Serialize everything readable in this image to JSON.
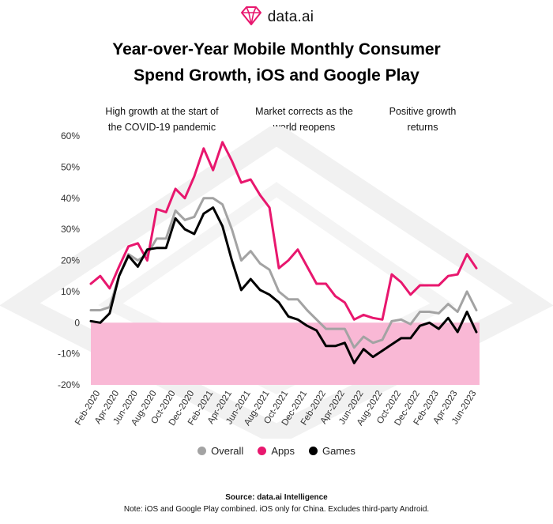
{
  "brand": {
    "name": "data.ai",
    "logo_icon": "gem-logo-icon"
  },
  "title": {
    "line1": "Year-over-Year Mobile Monthly Consumer",
    "line2": "Spend Growth, iOS and Google Play"
  },
  "annotations": [
    {
      "line1": "High growth at the start of",
      "line2": "the  COVID-19 pandemic"
    },
    {
      "line1": "Market corrects as the",
      "line2": "world reopens"
    },
    {
      "line1": "Positive growth",
      "line2": "returns"
    }
  ],
  "chart_data": {
    "type": "line",
    "title": "Year-over-Year Mobile Monthly Consumer Spend Growth, iOS and Google Play",
    "ylim": [
      -20,
      60
    ],
    "y_ticks": [
      "60%",
      "50%",
      "40%",
      "30%",
      "20%",
      "10%",
      "0",
      "-10%",
      "-20%"
    ],
    "y_tick_values": [
      60,
      50,
      40,
      30,
      20,
      10,
      0,
      -10,
      -20
    ],
    "negative_region_color": "#F9B8D5",
    "grid": false,
    "legend_position": "bottom",
    "x": [
      "Jan-2020",
      "Feb-2020",
      "Mar-2020",
      "Apr-2020",
      "May-2020",
      "Jun-2020",
      "Jul-2020",
      "Aug-2020",
      "Sep-2020",
      "Oct-2020",
      "Nov-2020",
      "Dec-2020",
      "Jan-2021",
      "Feb-2021",
      "Mar-2021",
      "Apr-2021",
      "May-2021",
      "Jun-2021",
      "Jul-2021",
      "Aug-2021",
      "Sep-2021",
      "Oct-2021",
      "Nov-2021",
      "Dec-2021",
      "Jan-2022",
      "Feb-2022",
      "Mar-2022",
      "Apr-2022",
      "May-2022",
      "Jun-2022",
      "Jul-2022",
      "Aug-2022",
      "Sep-2022",
      "Oct-2022",
      "Nov-2022",
      "Dec-2022",
      "Jan-2023",
      "Feb-2023",
      "Mar-2023",
      "Apr-2023",
      "May-2023",
      "Jun-2023"
    ],
    "x_tick_labels": [
      "Feb-2020",
      "Apr-2020",
      "Jun-2020",
      "Aug-2020",
      "Oct-2020",
      "Dec-2020",
      "Feb-2021",
      "Apr-2021",
      "Jun-2021",
      "Aug-2021",
      "Oct-2021",
      "Dec-2021",
      "Feb-2022",
      "Apr-2022",
      "Jun-2022",
      "Aug-2022",
      "Oct-2022",
      "Dec-2022",
      "Feb-2023",
      "Apr-2023",
      "Jun-2023"
    ],
    "series": [
      {
        "name": "Overall",
        "color": "#A3A3A3",
        "values": [
          4,
          4,
          5,
          15,
          22,
          20,
          22,
          27,
          27,
          36,
          33,
          34,
          40,
          40,
          38,
          30,
          20,
          23,
          19,
          17,
          10,
          7.5,
          7.5,
          4,
          1,
          -2,
          -2,
          -2,
          -8,
          -4.5,
          -6.5,
          -5.5,
          0.5,
          1,
          -0.5,
          3.5,
          3.5,
          3,
          6,
          3.5,
          10,
          4
        ]
      },
      {
        "name": "Apps",
        "color": "#E8176E",
        "values": [
          12.5,
          15,
          11,
          18,
          24.5,
          25.5,
          20,
          36.5,
          35.5,
          43,
          40,
          47,
          56,
          49,
          58,
          52,
          45,
          46,
          41,
          37,
          17.5,
          20,
          23.5,
          18,
          12.5,
          12.5,
          8.5,
          6.5,
          1,
          2.5,
          1.5,
          1,
          15.5,
          13,
          9,
          12,
          12,
          12,
          15,
          15.5,
          22,
          17.5
        ]
      },
      {
        "name": "Games",
        "color": "#000000",
        "values": [
          0.5,
          0,
          3,
          15,
          21.5,
          18,
          23.5,
          24,
          24,
          33.5,
          30,
          28.5,
          35,
          37,
          31,
          20,
          10.5,
          14,
          10.5,
          9,
          6.5,
          2,
          1,
          -1,
          -2.5,
          -7.5,
          -7.5,
          -6.5,
          -13,
          -8.5,
          -11,
          -9,
          -7,
          -5,
          -5,
          -1,
          0,
          -2,
          1.5,
          -3,
          3.5,
          -3
        ]
      }
    ]
  },
  "legend": [
    {
      "label": "Overall",
      "color": "#A3A3A3"
    },
    {
      "label": "Apps",
      "color": "#E8176E"
    },
    {
      "label": "Games",
      "color": "#000000"
    }
  ],
  "footer": {
    "source": "Source: data.ai Intelligence",
    "note": "Note: iOS and Google Play combined. iOS only for China. Excludes third-party Android."
  }
}
